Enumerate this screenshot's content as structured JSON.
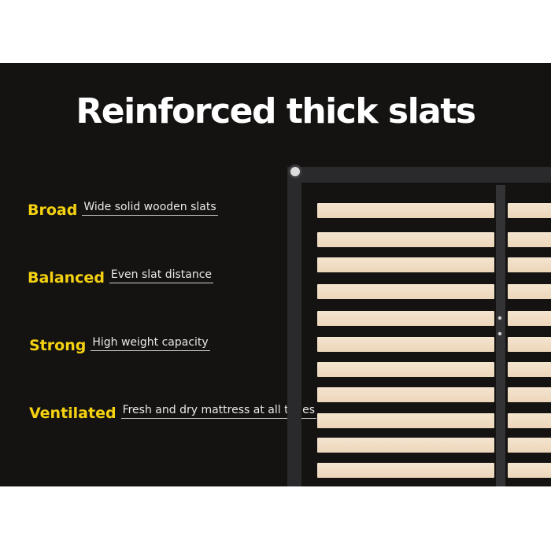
{
  "title": "Reinforced thick slats",
  "colors": {
    "background": "#151312",
    "label": "#f5d20f",
    "slat": "#f0dcc2"
  },
  "features": [
    {
      "label": "Broad",
      "description": "Wide solid wooden slats"
    },
    {
      "label": "Balanced",
      "description": "Even slat distance"
    },
    {
      "label": "Strong",
      "description": "High weight capacity"
    },
    {
      "label": "Ventilated",
      "description": "Fresh and dry mattress at all times"
    }
  ]
}
